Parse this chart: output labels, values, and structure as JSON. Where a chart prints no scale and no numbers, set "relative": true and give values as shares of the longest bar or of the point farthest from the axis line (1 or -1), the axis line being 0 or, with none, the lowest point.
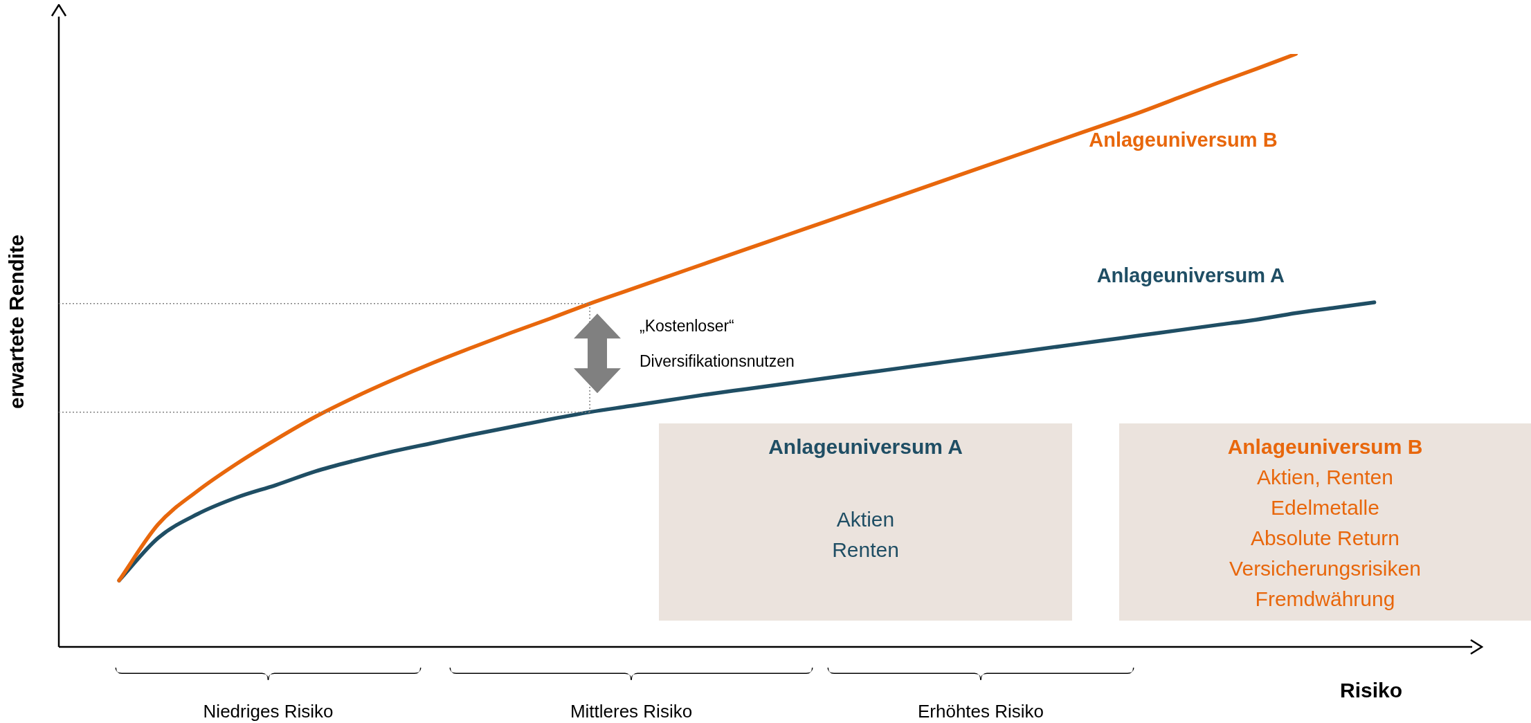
{
  "chart_data": {
    "type": "line",
    "relative": true,
    "xlabel": "Risiko",
    "ylabel": "erwartete Rendite",
    "categories": [
      null,
      null,
      null,
      null,
      null,
      null,
      null,
      null,
      null,
      null,
      null,
      null,
      null,
      null,
      null,
      null,
      null,
      null,
      null,
      null,
      null,
      null,
      null,
      null,
      null,
      null,
      null,
      null,
      null,
      null,
      null,
      null,
      null,
      null,
      null
    ],
    "series": [
      {
        "name": "Anlageuniversum B",
        "color": "#e8670c",
        "values": [
          0.112,
          0.207,
          0.263,
          0.309,
          0.35,
          0.388,
          0.421,
          0.451,
          0.479,
          0.505,
          0.53,
          0.554,
          0.579,
          0.602,
          0.625,
          0.648,
          0.671,
          0.694,
          0.717,
          0.74,
          0.763,
          0.786,
          0.809,
          0.832,
          0.855,
          0.878,
          0.901,
          0.926,
          0.951,
          0.975,
          1,
          null,
          null,
          null,
          null
        ]
      },
      {
        "name": "Anlageuniversum A",
        "color": "#1f4e64",
        "values": [
          0.112,
          0.184,
          0.224,
          0.252,
          0.273,
          0.296,
          0.314,
          0.33,
          0.344,
          0.358,
          0.371,
          0.384,
          0.396,
          0.406,
          0.416,
          0.426,
          0.435,
          0.444,
          0.453,
          0.462,
          0.471,
          0.48,
          0.489,
          0.498,
          0.507,
          0.516,
          0.525,
          0.534,
          0.543,
          0.552,
          0.563,
          0.572,
          0.581,
          null,
          null
        ]
      }
    ],
    "ref_lines": [
      {
        "axis": "y",
        "value": 0.579,
        "line_style": "dotted",
        "color": "#808080"
      },
      {
        "axis": "y",
        "value": 0.396,
        "line_style": "dotted",
        "color": "#808080"
      }
    ],
    "annotations": [
      "„Kostenloser“\nDiversifikationsnutzen",
      "Anlageuniversum A\nAktien\nRenten",
      "Anlageuniversum B\nAktien, Renten\nEdelmetalle\nAbsolute Return\nVersicherungsrisiken\nFremdwährung",
      "Niedriges Risiko",
      "Mittleres Risiko",
      "Erhöhtes Risiko"
    ],
    "grid": false,
    "legend": false,
    "marker": "none",
    "line_style": "solid",
    "tick_labels": false
  }
}
